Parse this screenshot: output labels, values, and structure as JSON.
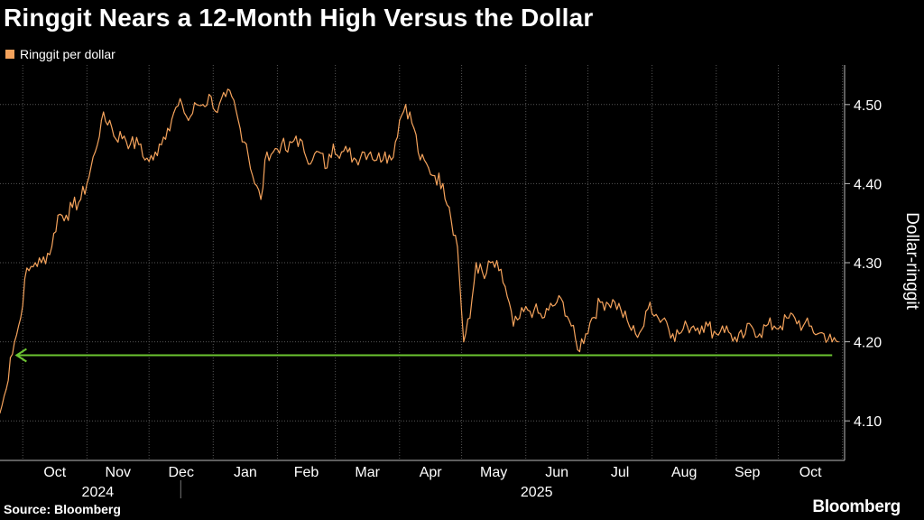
{
  "chart_data": {
    "type": "line",
    "title": "Ringgit Nears a 12-Month High Versus the Dollar",
    "legend": "Ringgit per dollar",
    "ylabel": "Dollar-ringgit",
    "ylim": [
      4.05,
      4.55
    ],
    "yticks": [
      "4.50",
      "4.40",
      "4.30",
      "4.20",
      "4.10"
    ],
    "ytick_values": [
      4.5,
      4.4,
      4.3,
      4.2,
      4.1
    ],
    "xlim": [
      "2024-09-20",
      "2025-11-02"
    ],
    "x_tick_labels": [
      "Oct",
      "Nov",
      "Dec",
      "Jan",
      "Feb",
      "Mar",
      "Apr",
      "May",
      "Jun",
      "Jul",
      "Aug",
      "Sep",
      "Oct"
    ],
    "x_tick_dates": [
      "2024-10-01",
      "2024-11-01",
      "2024-12-01",
      "2025-01-01",
      "2025-02-01",
      "2025-03-01",
      "2025-04-01",
      "2025-05-01",
      "2025-06-01",
      "2025-07-01",
      "2025-08-01",
      "2025-09-01",
      "2025-10-01"
    ],
    "years": [
      {
        "label": "2024",
        "date": "2024-11-01"
      },
      {
        "label": "2025",
        "date": "2025-06-01"
      }
    ],
    "grid": true,
    "legend_position": "top-left",
    "series_color": "#f5a35c",
    "reference_line": {
      "value": 4.183,
      "color": "#6cc531",
      "arrow": "left",
      "from": "2024-09-28",
      "to": "2025-10-27"
    },
    "series": [
      {
        "name": "Ringgit per dollar",
        "x": [
          "2024-09-20",
          "2024-09-23",
          "2024-09-25",
          "2024-09-27",
          "2024-09-30",
          "2024-10-02",
          "2024-10-04",
          "2024-10-07",
          "2024-10-10",
          "2024-10-15",
          "2024-10-18",
          "2024-10-22",
          "2024-10-25",
          "2024-10-29",
          "2024-11-01",
          "2024-11-05",
          "2024-11-08",
          "2024-11-12",
          "2024-11-14",
          "2024-11-19",
          "2024-11-22",
          "2024-11-27",
          "2024-11-29",
          "2024-12-03",
          "2024-12-06",
          "2024-12-10",
          "2024-12-13",
          "2024-12-17",
          "2024-12-20",
          "2024-12-24",
          "2024-12-27",
          "2024-12-31",
          "2025-01-03",
          "2025-01-07",
          "2025-01-10",
          "2025-01-14",
          "2025-01-17",
          "2025-01-21",
          "2025-01-24",
          "2025-01-27",
          "2025-01-30",
          "2025-02-03",
          "2025-02-06",
          "2025-02-10",
          "2025-02-14",
          "2025-02-18",
          "2025-02-21",
          "2025-02-25",
          "2025-02-28",
          "2025-03-04",
          "2025-03-07",
          "2025-03-11",
          "2025-03-14",
          "2025-03-18",
          "2025-03-21",
          "2025-03-25",
          "2025-03-28",
          "2025-04-01",
          "2025-04-04",
          "2025-04-08",
          "2025-04-11",
          "2025-04-15",
          "2025-04-18",
          "2025-04-22",
          "2025-04-25",
          "2025-04-29",
          "2025-05-02",
          "2025-05-05",
          "2025-05-08",
          "2025-05-12",
          "2025-05-15",
          "2025-05-19",
          "2025-05-22",
          "2025-05-26",
          "2025-05-29",
          "2025-06-02",
          "2025-06-05",
          "2025-06-09",
          "2025-06-12",
          "2025-06-16",
          "2025-06-19",
          "2025-06-23",
          "2025-06-26",
          "2025-06-30",
          "2025-07-03",
          "2025-07-07",
          "2025-07-10",
          "2025-07-14",
          "2025-07-17",
          "2025-07-21",
          "2025-07-24",
          "2025-07-28",
          "2025-07-31",
          "2025-08-04",
          "2025-08-07",
          "2025-08-11",
          "2025-08-14",
          "2025-08-18",
          "2025-08-21",
          "2025-08-25",
          "2025-08-28",
          "2025-09-01",
          "2025-09-04",
          "2025-09-08",
          "2025-09-11",
          "2025-09-15",
          "2025-09-18",
          "2025-09-22",
          "2025-09-25",
          "2025-09-29",
          "2025-10-02",
          "2025-10-06",
          "2025-10-09",
          "2025-10-13",
          "2025-10-16",
          "2025-10-20",
          "2025-10-23",
          "2025-10-27",
          "2025-10-30"
        ],
        "values": [
          4.11,
          4.14,
          4.18,
          4.2,
          4.23,
          4.28,
          4.29,
          4.3,
          4.3,
          4.32,
          4.36,
          4.36,
          4.37,
          4.38,
          4.4,
          4.44,
          4.48,
          4.48,
          4.46,
          4.46,
          4.45,
          4.45,
          4.43,
          4.43,
          4.45,
          4.47,
          4.49,
          4.5,
          4.48,
          4.5,
          4.5,
          4.51,
          4.49,
          4.51,
          4.51,
          4.47,
          4.45,
          4.4,
          4.38,
          4.44,
          4.44,
          4.45,
          4.44,
          4.46,
          4.44,
          4.43,
          4.44,
          4.42,
          4.45,
          4.44,
          4.44,
          4.43,
          4.44,
          4.44,
          4.43,
          4.44,
          4.43,
          4.48,
          4.5,
          4.47,
          4.43,
          4.42,
          4.41,
          4.4,
          4.37,
          4.32,
          4.2,
          4.23,
          4.3,
          4.28,
          4.3,
          4.29,
          4.27,
          4.22,
          4.23,
          4.24,
          4.24,
          4.23,
          4.24,
          4.25,
          4.25,
          4.22,
          4.19,
          4.21,
          4.23,
          4.25,
          4.25,
          4.25,
          4.24,
          4.22,
          4.21,
          4.22,
          4.25,
          4.23,
          4.23,
          4.21,
          4.21,
          4.22,
          4.22,
          4.22,
          4.22,
          4.21,
          4.22,
          4.21,
          4.2,
          4.21,
          4.22,
          4.21,
          4.22,
          4.22,
          4.22,
          4.23,
          4.23,
          4.22,
          4.22,
          4.21,
          4.21,
          4.2,
          4.2
        ]
      }
    ]
  },
  "source": "Source: Bloomberg",
  "brand": "Bloomberg"
}
